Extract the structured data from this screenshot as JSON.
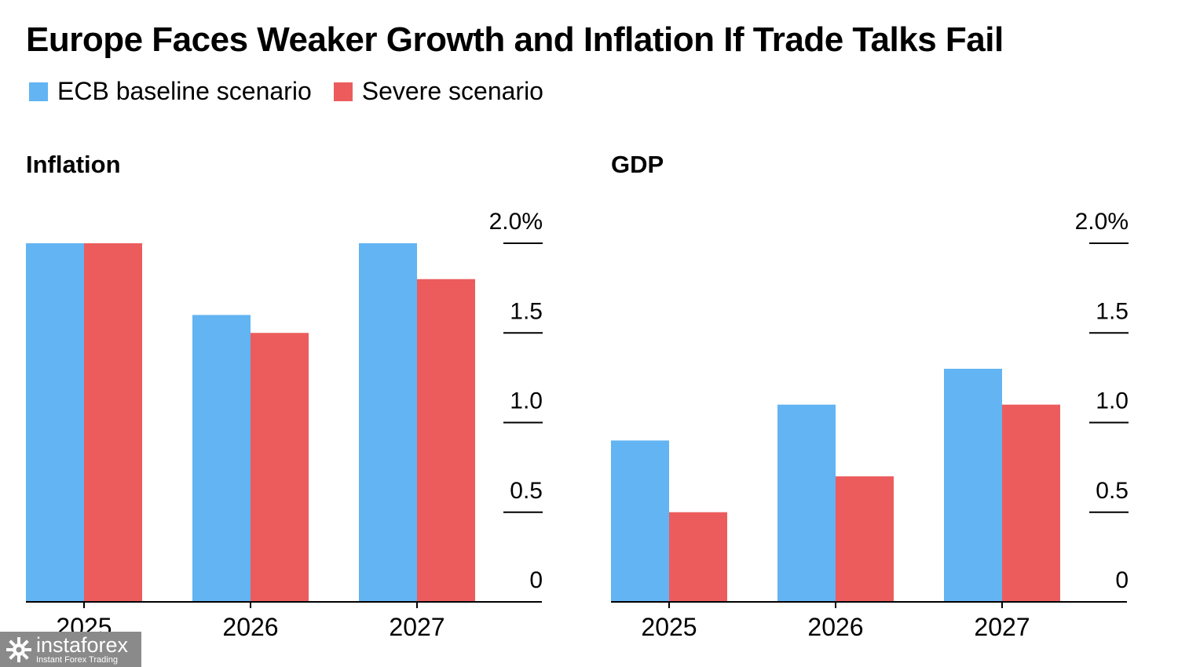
{
  "title": "Europe Faces Weaker Growth and Inflation If Trade Talks Fail",
  "legend": [
    {
      "label": "ECB baseline scenario",
      "color": "#62b4f2"
    },
    {
      "label": "Severe scenario",
      "color": "#ec5c5c"
    }
  ],
  "chart_data": [
    {
      "type": "bar",
      "title": "Inflation",
      "categories": [
        "2025",
        "2026",
        "2027"
      ],
      "series": [
        {
          "name": "ECB baseline scenario",
          "values": [
            2.0,
            1.6,
            2.0
          ],
          "color": "#62b4f2"
        },
        {
          "name": "Severe scenario",
          "values": [
            2.0,
            1.5,
            1.8
          ],
          "color": "#ec5c5c"
        }
      ],
      "ylim": [
        0,
        2.0
      ],
      "yticks": [
        "0",
        "0.5",
        "1.0",
        "1.5",
        "2.0%"
      ],
      "axis_side": "right",
      "legend_position": "top-left"
    },
    {
      "type": "bar",
      "title": "GDP",
      "categories": [
        "2025",
        "2026",
        "2027"
      ],
      "series": [
        {
          "name": "ECB baseline scenario",
          "values": [
            0.9,
            1.1,
            1.3
          ],
          "color": "#62b4f2"
        },
        {
          "name": "Severe scenario",
          "values": [
            0.5,
            0.7,
            1.1
          ],
          "color": "#ec5c5c"
        }
      ],
      "ylim": [
        0,
        2.0
      ],
      "yticks": [
        "0",
        "0.5",
        "1.0",
        "1.5",
        "2.0%"
      ],
      "axis_side": "right",
      "legend_position": "top-left"
    }
  ],
  "watermark": {
    "brand": "instaforex",
    "tagline": "Instant Forex Trading"
  }
}
